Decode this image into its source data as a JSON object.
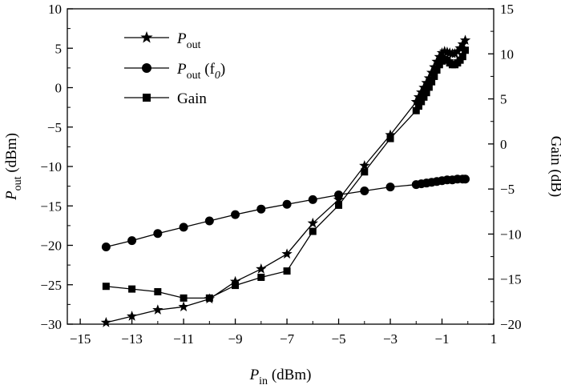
{
  "chart_data": {
    "type": "line",
    "title": "",
    "xlabel": {
      "main": "P",
      "sub": "in",
      "unit": " (dBm)"
    },
    "ylabel_left": {
      "main": "P",
      "sub": "out",
      "unit": " (dBm)"
    },
    "ylabel_right": "Gain (dB)",
    "xlim": [
      -15.5,
      1
    ],
    "ylim_left": [
      -30,
      10
    ],
    "ylim_right": [
      -20,
      15
    ],
    "x_ticks": [
      -15,
      -13,
      -11,
      -9,
      -7,
      -5,
      -3,
      -1,
      1
    ],
    "x_tick_labels": [
      "−15",
      "−13",
      "−11",
      "−9",
      "−7",
      "−5",
      "−3",
      "−1",
      "1"
    ],
    "y_ticks_left": [
      -30,
      -25,
      -20,
      -15,
      -10,
      -5,
      0,
      5,
      10
    ],
    "y_tick_labels_left": [
      "−30",
      "−25",
      "−20",
      "−15",
      "−10",
      "−5",
      "0",
      "5",
      "10"
    ],
    "y_ticks_right": [
      -20,
      -15,
      -10,
      -5,
      0,
      5,
      10,
      15
    ],
    "y_tick_labels_right": [
      "−20",
      "−15",
      "−10",
      "−5",
      "0",
      "5",
      "10",
      "15"
    ],
    "grid": false,
    "legend_position": "top-left",
    "series": [
      {
        "name": "P_out",
        "legend": {
          "main": "P",
          "sub": "out",
          "rest": ""
        },
        "marker": "star",
        "axis": "left",
        "x": [
          -14,
          -13,
          -12,
          -11,
          -10,
          -9,
          -8,
          -7,
          -6,
          -5,
          -4,
          -3,
          -2,
          -1.9,
          -1.8,
          -1.7,
          -1.6,
          -1.5,
          -1.4,
          -1.3,
          -1.2,
          -1.1,
          -1.0,
          -0.9,
          -0.8,
          -0.7,
          -0.6,
          -0.5,
          -0.4,
          -0.3,
          -0.2,
          -0.1
        ],
        "y": [
          -29.8,
          -29,
          -28.2,
          -27.8,
          -26.8,
          -24.6,
          -23,
          -21.1,
          -17.2,
          -14.2,
          -9.9,
          -6,
          -1.8,
          -1.2,
          -0.6,
          0,
          0.6,
          1.2,
          1.9,
          2.6,
          3.3,
          3.9,
          4.4,
          4.6,
          4.5,
          4.4,
          4.3,
          4.3,
          4.6,
          5.0,
          5.5,
          6.0
        ]
      },
      {
        "name": "P_out (f0)",
        "legend": {
          "main": "P",
          "sub": "out",
          "rest": " (f",
          "sub2": "0",
          "rest2": ")"
        },
        "marker": "circle",
        "axis": "left",
        "x": [
          -14,
          -13,
          -12,
          -11,
          -10,
          -9,
          -8,
          -7,
          -6,
          -5,
          -4,
          -3,
          -2,
          -1.8,
          -1.6,
          -1.4,
          -1.2,
          -1.0,
          -0.8,
          -0.6,
          -0.4,
          -0.2,
          -0.1
        ],
        "y": [
          -20.2,
          -19.4,
          -18.5,
          -17.7,
          -16.9,
          -16.1,
          -15.4,
          -14.8,
          -14.2,
          -13.6,
          -13.1,
          -12.6,
          -12.3,
          -12.2,
          -12.1,
          -12.0,
          -11.9,
          -11.8,
          -11.7,
          -11.7,
          -11.6,
          -11.6,
          -11.6
        ]
      },
      {
        "name": "Gain",
        "legend": {
          "main": "Gain",
          "sub": "",
          "rest": ""
        },
        "marker": "square",
        "axis": "right",
        "x": [
          -14,
          -13,
          -12,
          -11,
          -10,
          -9,
          -8,
          -7,
          -6,
          -5,
          -4,
          -3,
          -2,
          -1.9,
          -1.8,
          -1.7,
          -1.6,
          -1.5,
          -1.4,
          -1.3,
          -1.2,
          -1.1,
          -1.0,
          -0.9,
          -0.8,
          -0.7,
          -0.6,
          -0.5,
          -0.4,
          -0.3,
          -0.2,
          -0.1
        ],
        "y": [
          -15.8,
          -16.1,
          -16.4,
          -17.1,
          -17.1,
          -15.7,
          -14.8,
          -14.1,
          -9.7,
          -6.8,
          -3.1,
          0.6,
          3.7,
          4.2,
          4.7,
          5.2,
          5.7,
          6.3,
          6.9,
          7.5,
          8.2,
          8.8,
          9.2,
          9.4,
          9.3,
          9.0,
          8.8,
          8.8,
          9.0,
          9.3,
          9.7,
          10.4
        ]
      }
    ]
  }
}
